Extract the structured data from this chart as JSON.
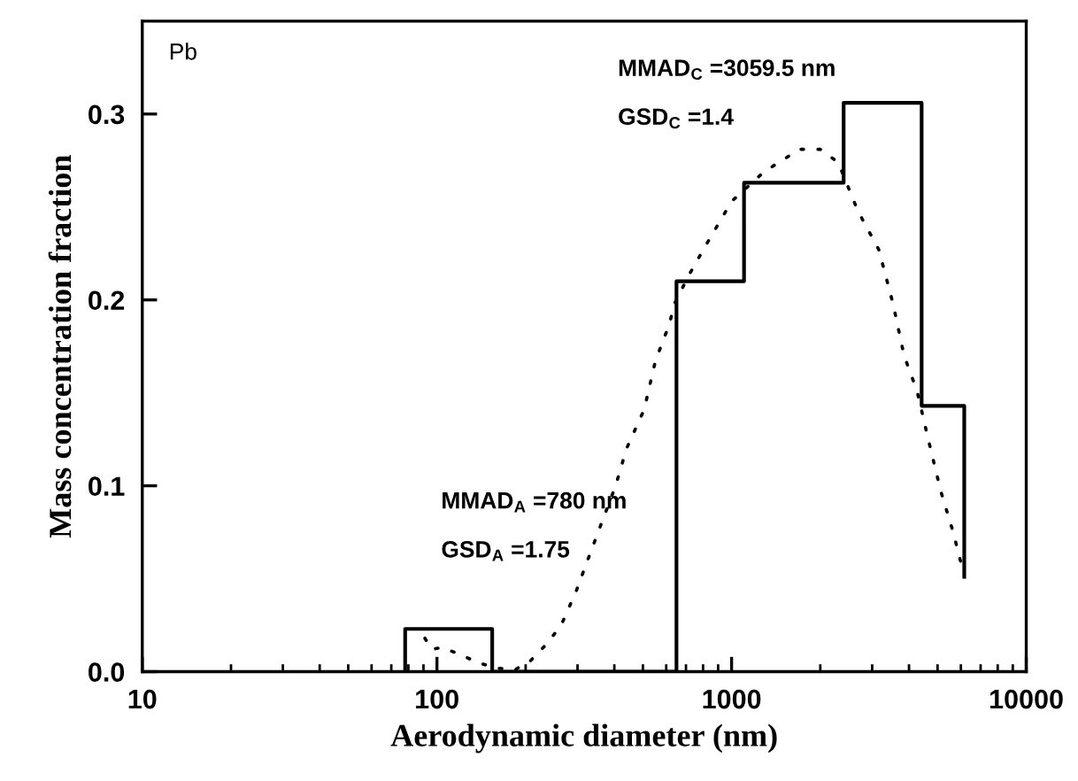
{
  "chart_data": {
    "type": "step",
    "xlabel": "Aerodynamic diameter (nm)",
    "ylabel": "Mass concentration fraction",
    "log": "x",
    "xlim": [
      10,
      10000
    ],
    "xticks": [
      10,
      100,
      1000,
      10000
    ],
    "ylim": [
      0,
      0.35
    ],
    "yticks": [
      {
        "value": 0,
        "label": "0.0"
      },
      {
        "value": 0.1,
        "label": "0.1"
      },
      {
        "value": 0.2,
        "label": "0.2"
      },
      {
        "value": 0.3,
        "label": "0.3"
      }
    ],
    "grid": false,
    "legend": false,
    "annotations": [
      "Pb",
      "MMAD$_{C}$ =3059.5 nm",
      "GSD$_{C}$ =1.4",
      "MMAD$_{A}$ =780 nm",
      "GSD$_{A}$ =1.75"
    ],
    "series": [
      {
        "color": "#000000",
        "line_style": "solid",
        "x": [
          78,
          78,
          154,
          650,
          1102,
          2400,
          4415,
          6160
        ],
        "values": [
          0,
          0.023,
          0,
          0.21,
          0.263,
          0.306,
          0.143,
          0.051
        ]
      },
      {
        "type": "line",
        "color": "#000000",
        "line_style": "dotted",
        "x": [
          91,
          96,
          104,
          121,
          137,
          158,
          184,
          208,
          236,
          264,
          298,
          330,
          362,
          404,
          440,
          505,
          551,
          615,
          640,
          720,
          843,
          1000,
          1290,
          1700,
          2000,
          2300,
          2680,
          3160,
          3530,
          3850,
          4260,
          4650,
          5130,
          5650,
          6060
        ],
        "values": [
          0.018,
          0.012,
          0.013,
          0.009,
          0.005,
          0.002,
          0.001,
          0.006,
          0.015,
          0.025,
          0.044,
          0.063,
          0.08,
          0.1,
          0.12,
          0.141,
          0.167,
          0.187,
          0.198,
          0.214,
          0.233,
          0.253,
          0.269,
          0.281,
          0.281,
          0.274,
          0.248,
          0.227,
          0.198,
          0.17,
          0.151,
          0.125,
          0.097,
          0.075,
          0.056
        ]
      }
    ]
  }
}
